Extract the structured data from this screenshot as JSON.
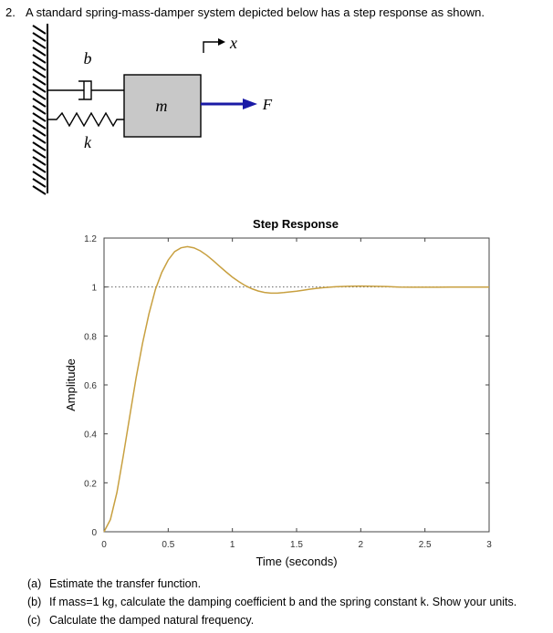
{
  "problem": {
    "number": "2.",
    "statement": "A standard spring-mass-damper system depicted below has a step response as shown."
  },
  "diagram": {
    "damper_label": "b",
    "spring_label": "k",
    "mass_label": "m",
    "force_label": "F",
    "displacement_label": "x",
    "force_arrow_color": "#1a1aa6"
  },
  "chart_data": {
    "type": "line",
    "title": "Step Response",
    "xlabel": "Time (seconds)",
    "ylabel": "Amplitude",
    "xlim": [
      0,
      3
    ],
    "ylim": [
      0,
      1.2
    ],
    "xticks": [
      "0",
      "0.5",
      "1",
      "1.5",
      "2",
      "2.5",
      "3"
    ],
    "yticks": [
      "0",
      "0.2",
      "0.4",
      "0.6",
      "0.8",
      "1",
      "1.2"
    ],
    "reference_line": 1,
    "line_color": "#c8a040",
    "series": [
      {
        "x": [
          0,
          0.05,
          0.1,
          0.15,
          0.2,
          0.25,
          0.3,
          0.35,
          0.4,
          0.45,
          0.5,
          0.55,
          0.6,
          0.65,
          0.7,
          0.75,
          0.8,
          0.85,
          0.9,
          0.95,
          1.0,
          1.05,
          1.1,
          1.15,
          1.2,
          1.25,
          1.3,
          1.35,
          1.4,
          1.45,
          1.5,
          1.55,
          1.6,
          1.65,
          1.7,
          1.8,
          1.9,
          2.0,
          2.1,
          2.2,
          2.3,
          2.4,
          2.5,
          2.6,
          2.7,
          2.8,
          2.9,
          3.0
        ],
        "values": [
          0,
          0.05,
          0.16,
          0.31,
          0.47,
          0.63,
          0.77,
          0.89,
          0.99,
          1.06,
          1.11,
          1.145,
          1.16,
          1.165,
          1.16,
          1.148,
          1.13,
          1.108,
          1.085,
          1.062,
          1.04,
          1.022,
          1.006,
          0.993,
          0.984,
          0.978,
          0.975,
          0.975,
          0.977,
          0.98,
          0.983,
          0.987,
          0.991,
          0.994,
          0.997,
          1.001,
          1.003,
          1.004,
          1.003,
          1.002,
          1.0,
          0.999,
          0.999,
          0.999,
          1.0,
          1.0,
          1.0,
          1.0
        ]
      }
    ]
  },
  "questions": [
    {
      "label": "(a)",
      "text": "Estimate the transfer function."
    },
    {
      "label": "(b)",
      "text": "If mass=1 kg, calculate the damping coefficient b and the spring constant k. Show your units."
    },
    {
      "label": "(c)",
      "text": "Calculate the damped natural frequency."
    }
  ]
}
